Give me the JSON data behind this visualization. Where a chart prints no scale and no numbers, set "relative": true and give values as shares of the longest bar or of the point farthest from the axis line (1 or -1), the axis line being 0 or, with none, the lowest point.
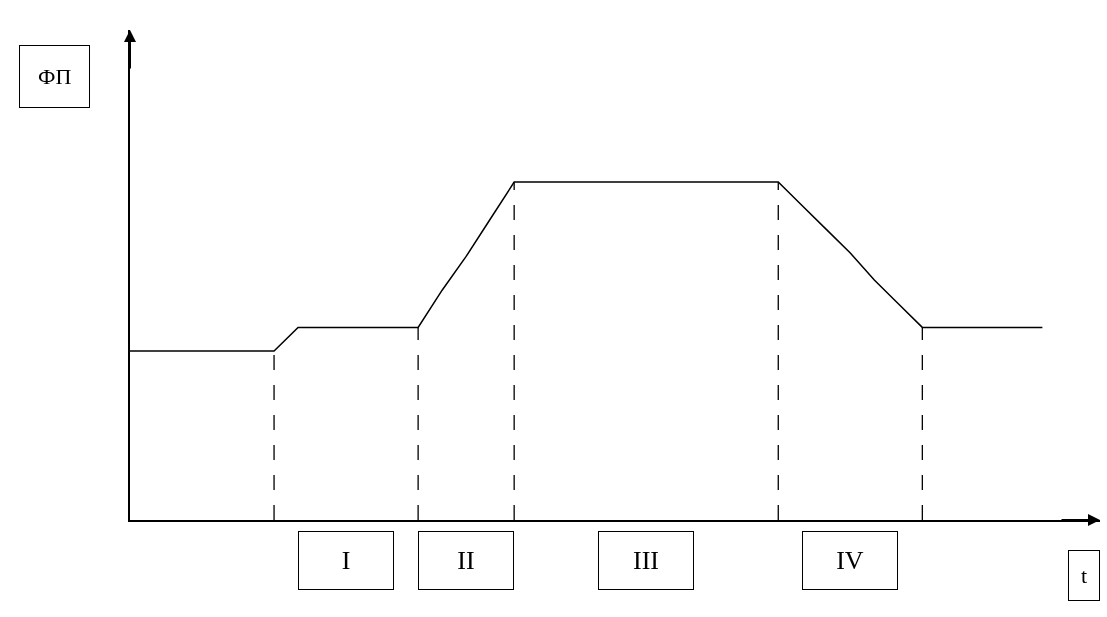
{
  "chart_data": {
    "type": "line",
    "relative": true,
    "xlabel": "t",
    "ylabel": "ФП",
    "categories": [
      null,
      null,
      null,
      null,
      null,
      null,
      null,
      null,
      null,
      null,
      null,
      null,
      null,
      null,
      null,
      null,
      null,
      null,
      null,
      null,
      null,
      null,
      null,
      null,
      null,
      null,
      null,
      null,
      null,
      null,
      null,
      null,
      null,
      null,
      null,
      null,
      null,
      null,
      null
    ],
    "series": [
      {
        "color": "#000000",
        "values": [
          0.5,
          0.5,
          0.5,
          0.5,
          0.5,
          0.5,
          0.5,
          0.57,
          0.57,
          0.57,
          0.57,
          0.57,
          0.57,
          0.68,
          0.78,
          0.89,
          1,
          1,
          1,
          1,
          1,
          1,
          1,
          1,
          1,
          1,
          1,
          1,
          0.93,
          0.86,
          0.79,
          0.71,
          0.64,
          0.57,
          0.57,
          0.57,
          0.57,
          0.57,
          0.57
        ]
      }
    ],
    "annotations": [
      "I",
      "II",
      "III",
      "IV"
    ],
    "marker": "none",
    "line_style": "solid"
  }
}
